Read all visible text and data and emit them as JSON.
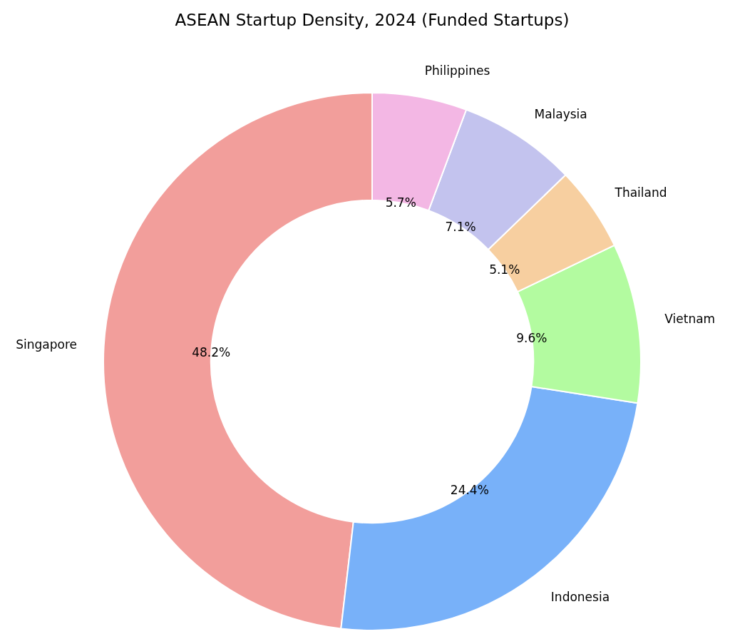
{
  "chart_data": {
    "type": "donut",
    "title": "ASEAN Startup Density, 2024 (Funded Startups)",
    "categories": [
      "Singapore",
      "Indonesia",
      "Vietnam",
      "Thailand",
      "Malaysia",
      "Philippines"
    ],
    "values": [
      48.2,
      24.4,
      9.6,
      5.1,
      7.1,
      5.7
    ],
    "value_labels": [
      "48.2%",
      "24.4%",
      "9.6%",
      "5.1%",
      "7.1%",
      "5.7%"
    ],
    "colors": [
      "#f29e9b",
      "#78b1f9",
      "#b3fba0",
      "#f7cfa0",
      "#c3c3ee",
      "#f3b7e4"
    ]
  }
}
